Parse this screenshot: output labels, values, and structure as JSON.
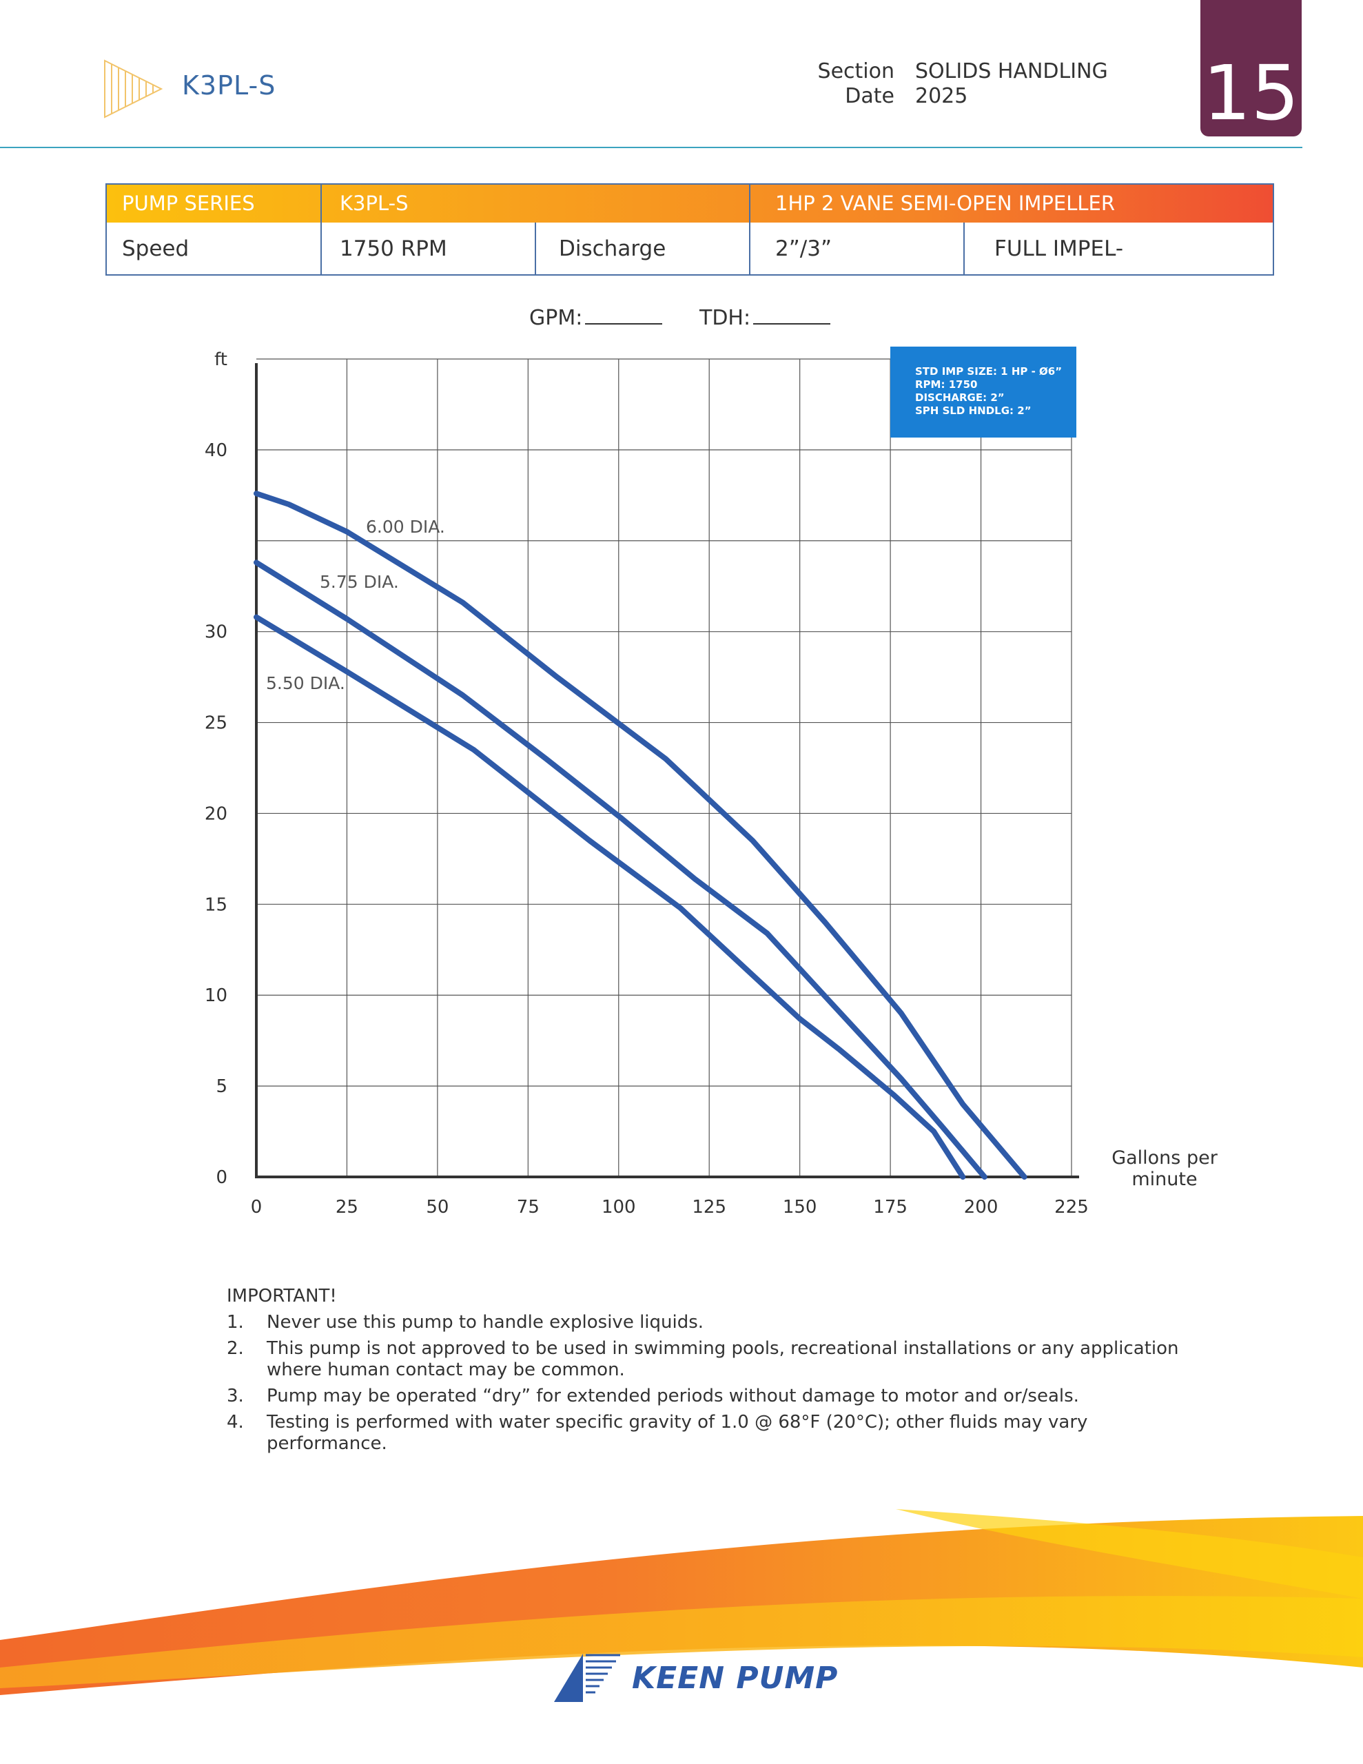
{
  "header": {
    "product_code": "K3PL-S",
    "section_label": "Section",
    "section_value": "SOLIDS HANDLING",
    "date_label": "Date",
    "date_value": "2025",
    "page_number": "15"
  },
  "spec_table": {
    "series_label": "PUMP SERIES",
    "series_value": "K3PL-S",
    "impeller": "1HP 2 VANE SEMI-OPEN IMPELLER",
    "speed_label": "Speed",
    "speed_value": "1750 RPM",
    "discharge_label": "Discharge",
    "discharge_value": "2”/3”",
    "impeller_note": "FULL IMPEL-"
  },
  "fields": {
    "gpm_label": "GPM:",
    "tdh_label": "TDH:"
  },
  "chart_data": {
    "type": "line",
    "title": "",
    "xlabel": "Gallons per minute",
    "ylabel": "ft",
    "xlim": [
      0,
      225
    ],
    "ylim": [
      0,
      45
    ],
    "x_ticks": [
      0,
      25,
      50,
      75,
      100,
      125,
      150,
      175,
      200,
      225
    ],
    "y_ticks": [
      0,
      5,
      10,
      15,
      20,
      25,
      30,
      40
    ],
    "info_box": [
      "STD IMP SIZE: 1 HP - Ø6”",
      "RPM: 1750",
      "DISCHARGE: 2”",
      "SPH SLD HNDLG: 2”"
    ],
    "series": [
      {
        "name": "6.00 DIA.",
        "x": [
          0,
          9,
          25,
          57,
          83,
          113,
          137,
          157,
          178,
          195,
          212
        ],
        "y": [
          37.6,
          37.0,
          35.5,
          31.6,
          27.5,
          23.0,
          18.5,
          14.0,
          9.0,
          4.0,
          0
        ]
      },
      {
        "name": "5.75 DIA.",
        "x": [
          0,
          25,
          57,
          80,
          101,
          121,
          141,
          159,
          178,
          190,
          201
        ],
        "y": [
          33.8,
          30.7,
          26.5,
          23.0,
          19.7,
          16.4,
          13.4,
          9.5,
          5.4,
          2.6,
          0
        ]
      },
      {
        "name": "5.50 DIA.",
        "x": [
          0,
          25,
          60,
          92,
          117,
          137,
          150,
          161,
          176,
          187,
          195
        ],
        "y": [
          30.8,
          27.8,
          23.5,
          18.5,
          14.8,
          11.1,
          8.7,
          7.0,
          4.5,
          2.5,
          0
        ]
      }
    ]
  },
  "notes": {
    "title": "IMPORTANT!",
    "items": [
      {
        "num": "1.",
        "text": "Never use this pump to handle explosive liquids."
      },
      {
        "num": "2.",
        "text": "This pump is not approved to be used in swimming pools, recreational installations or any application where human contact may be common."
      },
      {
        "num": "3.",
        "text": "Pump may be operated “dry” for extended periods without damage to motor and or/seals."
      },
      {
        "num": "4.",
        "text": "Testing is performed with water specific gravity of 1.0 @ 68°F (20°C); other fluids may vary performance."
      }
    ]
  },
  "footer": {
    "brand": "KEEN PUMP"
  },
  "colors": {
    "curve": "#2e5aa8",
    "badge": "#6b2c4f",
    "info_box": "#1a7fd4",
    "rule": "#3aa3bf"
  }
}
